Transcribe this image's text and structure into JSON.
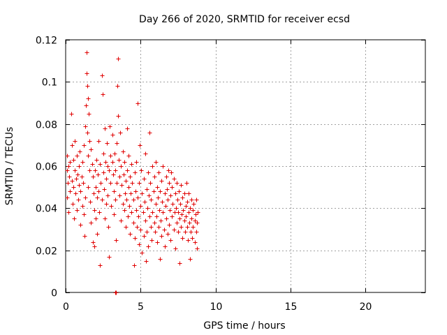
{
  "chart_data": {
    "type": "scatter",
    "title": "Day 266 of 2020, SRMTID for receiver ecsd",
    "xlabel": "GPS time / hours",
    "ylabel": "SRMTID / TECUs",
    "xlim": [
      0,
      24
    ],
    "ylim": [
      0,
      0.12
    ],
    "xticks": [
      0,
      5,
      10,
      15,
      20
    ],
    "xtick_labels": [
      "0",
      "5",
      "10",
      "15",
      "20"
    ],
    "yticks": [
      0,
      0.02,
      0.04,
      0.06,
      0.08,
      0.1,
      0.12
    ],
    "ytick_labels": [
      "0",
      "0.02",
      "0.04",
      "0.06",
      "0.08",
      "0.1",
      "0.12"
    ],
    "grid": true,
    "marker": "+",
    "series": [
      {
        "name": "SRMTID",
        "color": "#e00000",
        "points": [
          [
            0.1,
            0.065
          ],
          [
            0.1,
            0.058
          ],
          [
            0.1,
            0.045
          ],
          [
            0.15,
            0.052
          ],
          [
            0.2,
            0.06
          ],
          [
            0.2,
            0.038
          ],
          [
            0.25,
            0.055
          ],
          [
            0.3,
            0.062
          ],
          [
            0.3,
            0.048
          ],
          [
            0.35,
            0.085
          ],
          [
            0.4,
            0.07
          ],
          [
            0.4,
            0.053
          ],
          [
            0.45,
            0.042
          ],
          [
            0.5,
            0.063
          ],
          [
            0.5,
            0.05
          ],
          [
            0.55,
            0.035
          ],
          [
            0.6,
            0.058
          ],
          [
            0.6,
            0.072
          ],
          [
            0.65,
            0.047
          ],
          [
            0.7,
            0.054
          ],
          [
            0.75,
            0.065
          ],
          [
            0.75,
            0.039
          ],
          [
            0.8,
            0.056
          ],
          [
            0.85,
            0.044
          ],
          [
            0.9,
            0.06
          ],
          [
            0.9,
            0.051
          ],
          [
            0.95,
            0.067
          ],
          [
            1.0,
            0.048
          ],
          [
            1.0,
            0.032
          ],
          [
            1.05,
            0.055
          ],
          [
            1.1,
            0.041
          ],
          [
            1.1,
            0.062
          ],
          [
            1.15,
            0.052
          ],
          [
            1.2,
            0.037
          ],
          [
            1.2,
            0.07
          ],
          [
            1.25,
            0.027
          ],
          [
            1.3,
            0.045
          ],
          [
            1.3,
            0.079
          ],
          [
            1.35,
            0.089
          ],
          [
            1.4,
            0.114
          ],
          [
            1.4,
            0.104
          ],
          [
            1.45,
            0.098
          ],
          [
            1.45,
            0.076
          ],
          [
            1.5,
            0.092
          ],
          [
            1.5,
            0.065
          ],
          [
            1.5,
            0.05
          ],
          [
            1.55,
            0.085
          ],
          [
            1.6,
            0.072
          ],
          [
            1.6,
            0.058
          ],
          [
            1.65,
            0.043
          ],
          [
            1.7,
            0.068
          ],
          [
            1.7,
            0.033
          ],
          [
            1.75,
            0.061
          ],
          [
            1.8,
            0.055
          ],
          [
            1.8,
            0.024
          ],
          [
            1.85,
            0.047
          ],
          [
            1.9,
            0.039
          ],
          [
            1.9,
            0.022
          ],
          [
            1.95,
            0.058
          ],
          [
            2.0,
            0.05
          ],
          [
            2.0,
            0.035
          ],
          [
            2.05,
            0.063
          ],
          [
            2.1,
            0.045
          ],
          [
            2.1,
            0.028
          ],
          [
            2.15,
            0.056
          ],
          [
            2.2,
            0.048
          ],
          [
            2.2,
            0.072
          ],
          [
            2.25,
            0.038
          ],
          [
            2.3,
            0.061
          ],
          [
            2.3,
            0.013
          ],
          [
            2.35,
            0.052
          ],
          [
            2.4,
            0.044
          ],
          [
            2.4,
            0.103
          ],
          [
            2.45,
            0.094
          ],
          [
            2.5,
            0.066
          ],
          [
            2.5,
            0.057
          ],
          [
            2.55,
            0.049
          ],
          [
            2.6,
            0.078
          ],
          [
            2.6,
            0.035
          ],
          [
            2.65,
            0.062
          ],
          [
            2.7,
            0.054
          ],
          [
            2.7,
            0.042
          ],
          [
            2.75,
            0.071
          ],
          [
            2.8,
            0.06
          ],
          [
            2.8,
            0.046
          ],
          [
            2.85,
            0.031
          ],
          [
            2.9,
            0.058
          ],
          [
            2.9,
            0.017
          ],
          [
            2.95,
            0.079
          ],
          [
            3.0,
            0.065
          ],
          [
            3.0,
            0.052
          ],
          [
            3.05,
            0.041
          ],
          [
            3.1,
            0.062
          ],
          [
            3.1,
            0.075
          ],
          [
            3.15,
            0.056
          ],
          [
            3.2,
            0.048
          ],
          [
            3.2,
            0.037
          ],
          [
            3.25,
            0.066
          ],
          [
            3.3,
            0.044
          ],
          [
            3.3,
            0.058
          ],
          [
            3.35,
            0.025
          ],
          [
            3.4,
            0.071
          ],
          [
            3.4,
            0.052
          ],
          [
            3.45,
            0.098
          ],
          [
            3.5,
            0.111
          ],
          [
            3.5,
            0.084
          ],
          [
            3.55,
            0.063
          ],
          [
            3.6,
            0.055
          ],
          [
            3.6,
            0.046
          ],
          [
            3.65,
            0.076
          ],
          [
            3.7,
            0.06
          ],
          [
            3.7,
            0.034
          ],
          [
            3.75,
            0.051
          ],
          [
            3.8,
            0.042
          ],
          [
            3.8,
            0.067
          ],
          [
            3.85,
            0.056
          ],
          [
            3.9,
            0.039
          ],
          [
            3.9,
            0.062
          ],
          [
            3.95,
            0.047
          ],
          [
            4.0,
            0.053
          ],
          [
            4.0,
            0.031
          ],
          [
            4.05,
            0.044
          ],
          [
            4.1,
            0.078
          ],
          [
            4.1,
            0.058
          ],
          [
            4.15,
            0.036
          ],
          [
            4.2,
            0.05
          ],
          [
            4.2,
            0.065
          ],
          [
            4.25,
            0.041
          ],
          [
            4.3,
            0.055
          ],
          [
            4.3,
            0.028
          ],
          [
            4.35,
            0.047
          ],
          [
            4.4,
            0.061
          ],
          [
            4.4,
            0.038
          ],
          [
            4.45,
            0.052
          ],
          [
            4.5,
            0.033
          ],
          [
            4.5,
            0.044
          ],
          [
            4.55,
            0.013
          ],
          [
            4.6,
            0.057
          ],
          [
            4.6,
            0.026
          ],
          [
            4.65,
            0.048
          ],
          [
            4.7,
            0.039
          ],
          [
            4.7,
            0.062
          ],
          [
            4.75,
            0.031
          ],
          [
            4.8,
            0.09
          ],
          [
            4.8,
            0.045
          ],
          [
            4.85,
            0.036
          ],
          [
            4.9,
            0.052
          ],
          [
            4.9,
            0.023
          ],
          [
            4.95,
            0.07
          ],
          [
            5.0,
            0.041
          ],
          [
            5.0,
            0.03
          ],
          [
            5.05,
            0.058
          ],
          [
            5.1,
            0.047
          ],
          [
            5.1,
            0.019
          ],
          [
            5.15,
            0.038
          ],
          [
            5.2,
            0.054
          ],
          [
            5.2,
            0.027
          ],
          [
            5.25,
            0.043
          ],
          [
            5.3,
            0.066
          ],
          [
            5.3,
            0.034
          ],
          [
            5.35,
            0.015
          ],
          [
            5.4,
            0.049
          ],
          [
            5.4,
            0.029
          ],
          [
            5.45,
            0.04
          ],
          [
            5.5,
            0.057
          ],
          [
            5.5,
            0.022
          ],
          [
            5.55,
            0.046
          ],
          [
            5.6,
            0.036
          ],
          [
            5.6,
            0.076
          ],
          [
            5.65,
            0.052
          ],
          [
            5.7,
            0.031
          ],
          [
            5.7,
            0.044
          ],
          [
            5.75,
            0.025
          ],
          [
            5.8,
            0.06
          ],
          [
            5.8,
            0.038
          ],
          [
            5.85,
            0.048
          ],
          [
            5.9,
            0.033
          ],
          [
            5.9,
            0.055
          ],
          [
            5.95,
            0.029
          ],
          [
            6.0,
            0.042
          ],
          [
            6.0,
            0.062
          ],
          [
            6.05,
            0.036
          ],
          [
            6.1,
            0.05
          ],
          [
            6.1,
            0.024
          ],
          [
            6.15,
            0.045
          ],
          [
            6.2,
            0.031
          ],
          [
            6.2,
            0.057
          ],
          [
            6.25,
            0.039
          ],
          [
            6.3,
            0.016
          ],
          [
            6.3,
            0.048
          ],
          [
            6.35,
            0.034
          ],
          [
            6.4,
            0.053
          ],
          [
            6.4,
            0.027
          ],
          [
            6.45,
            0.043
          ],
          [
            6.5,
            0.038
          ],
          [
            6.5,
            0.06
          ],
          [
            6.55,
            0.03
          ],
          [
            6.6,
            0.047
          ],
          [
            6.6,
            0.022
          ],
          [
            6.65,
            0.041
          ],
          [
            6.7,
            0.055
          ],
          [
            6.7,
            0.035
          ],
          [
            6.75,
            0.049
          ],
          [
            6.8,
            0.028
          ],
          [
            6.8,
            0.044
          ],
          [
            6.85,
            0.058
          ],
          [
            6.9,
            0.032
          ],
          [
            6.9,
            0.052
          ],
          [
            6.95,
            0.039
          ],
          [
            7.0,
            0.046
          ],
          [
            7.0,
            0.025
          ],
          [
            7.05,
            0.057
          ],
          [
            7.1,
            0.036
          ],
          [
            7.1,
            0.05
          ],
          [
            7.15,
            0.042
          ],
          [
            7.2,
            0.03
          ],
          [
            7.2,
            0.054
          ],
          [
            7.25,
            0.038
          ],
          [
            7.3,
            0.047
          ],
          [
            7.3,
            0.021
          ],
          [
            7.35,
            0.04
          ],
          [
            7.4,
            0.033
          ],
          [
            7.4,
            0.052
          ],
          [
            7.45,
            0.044
          ],
          [
            7.5,
            0.029
          ],
          [
            7.5,
            0.038
          ],
          [
            7.55,
            0.048
          ],
          [
            7.6,
            0.035
          ],
          [
            7.6,
            0.014
          ],
          [
            7.65,
            0.042
          ],
          [
            7.7,
            0.031
          ],
          [
            7.7,
            0.051
          ],
          [
            7.75,
            0.037
          ],
          [
            7.8,
            0.045
          ],
          [
            7.8,
            0.026
          ],
          [
            7.85,
            0.039
          ],
          [
            7.9,
            0.034
          ],
          [
            7.9,
            0.047
          ],
          [
            7.95,
            0.029
          ],
          [
            8.0,
            0.041
          ],
          [
            8.0,
            0.036
          ],
          [
            8.05,
            0.052
          ],
          [
            8.1,
            0.031
          ],
          [
            8.1,
            0.043
          ],
          [
            8.15,
            0.025
          ],
          [
            8.2,
            0.038
          ],
          [
            8.2,
            0.047
          ],
          [
            8.25,
            0.033
          ],
          [
            8.3,
            0.04
          ],
          [
            8.3,
            0.016
          ],
          [
            8.35,
            0.029
          ],
          [
            8.4,
            0.044
          ],
          [
            8.4,
            0.035
          ],
          [
            8.45,
            0.026
          ],
          [
            8.5,
            0.039
          ],
          [
            8.5,
            0.031
          ],
          [
            8.55,
            0.042
          ],
          [
            8.6,
            0.034
          ],
          [
            8.6,
            0.024
          ],
          [
            8.65,
            0.037
          ],
          [
            8.7,
            0.029
          ],
          [
            8.7,
            0.044
          ],
          [
            8.75,
            0.033
          ],
          [
            8.75,
            0.021
          ],
          [
            8.8,
            0.038
          ],
          [
            3.3,
            0.0
          ],
          [
            3.35,
            0.0
          ]
        ]
      }
    ]
  }
}
